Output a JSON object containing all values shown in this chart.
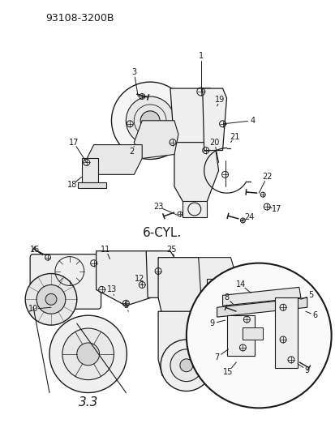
{
  "title": "93108-3200B",
  "bg": "#ffffff",
  "lc": "#1a1a1a",
  "tc": "#1a1a1a",
  "label_6cyl": "6-CYL.",
  "label_33": "3.3",
  "fig_width": 4.14,
  "fig_height": 5.33,
  "dpi": 100
}
